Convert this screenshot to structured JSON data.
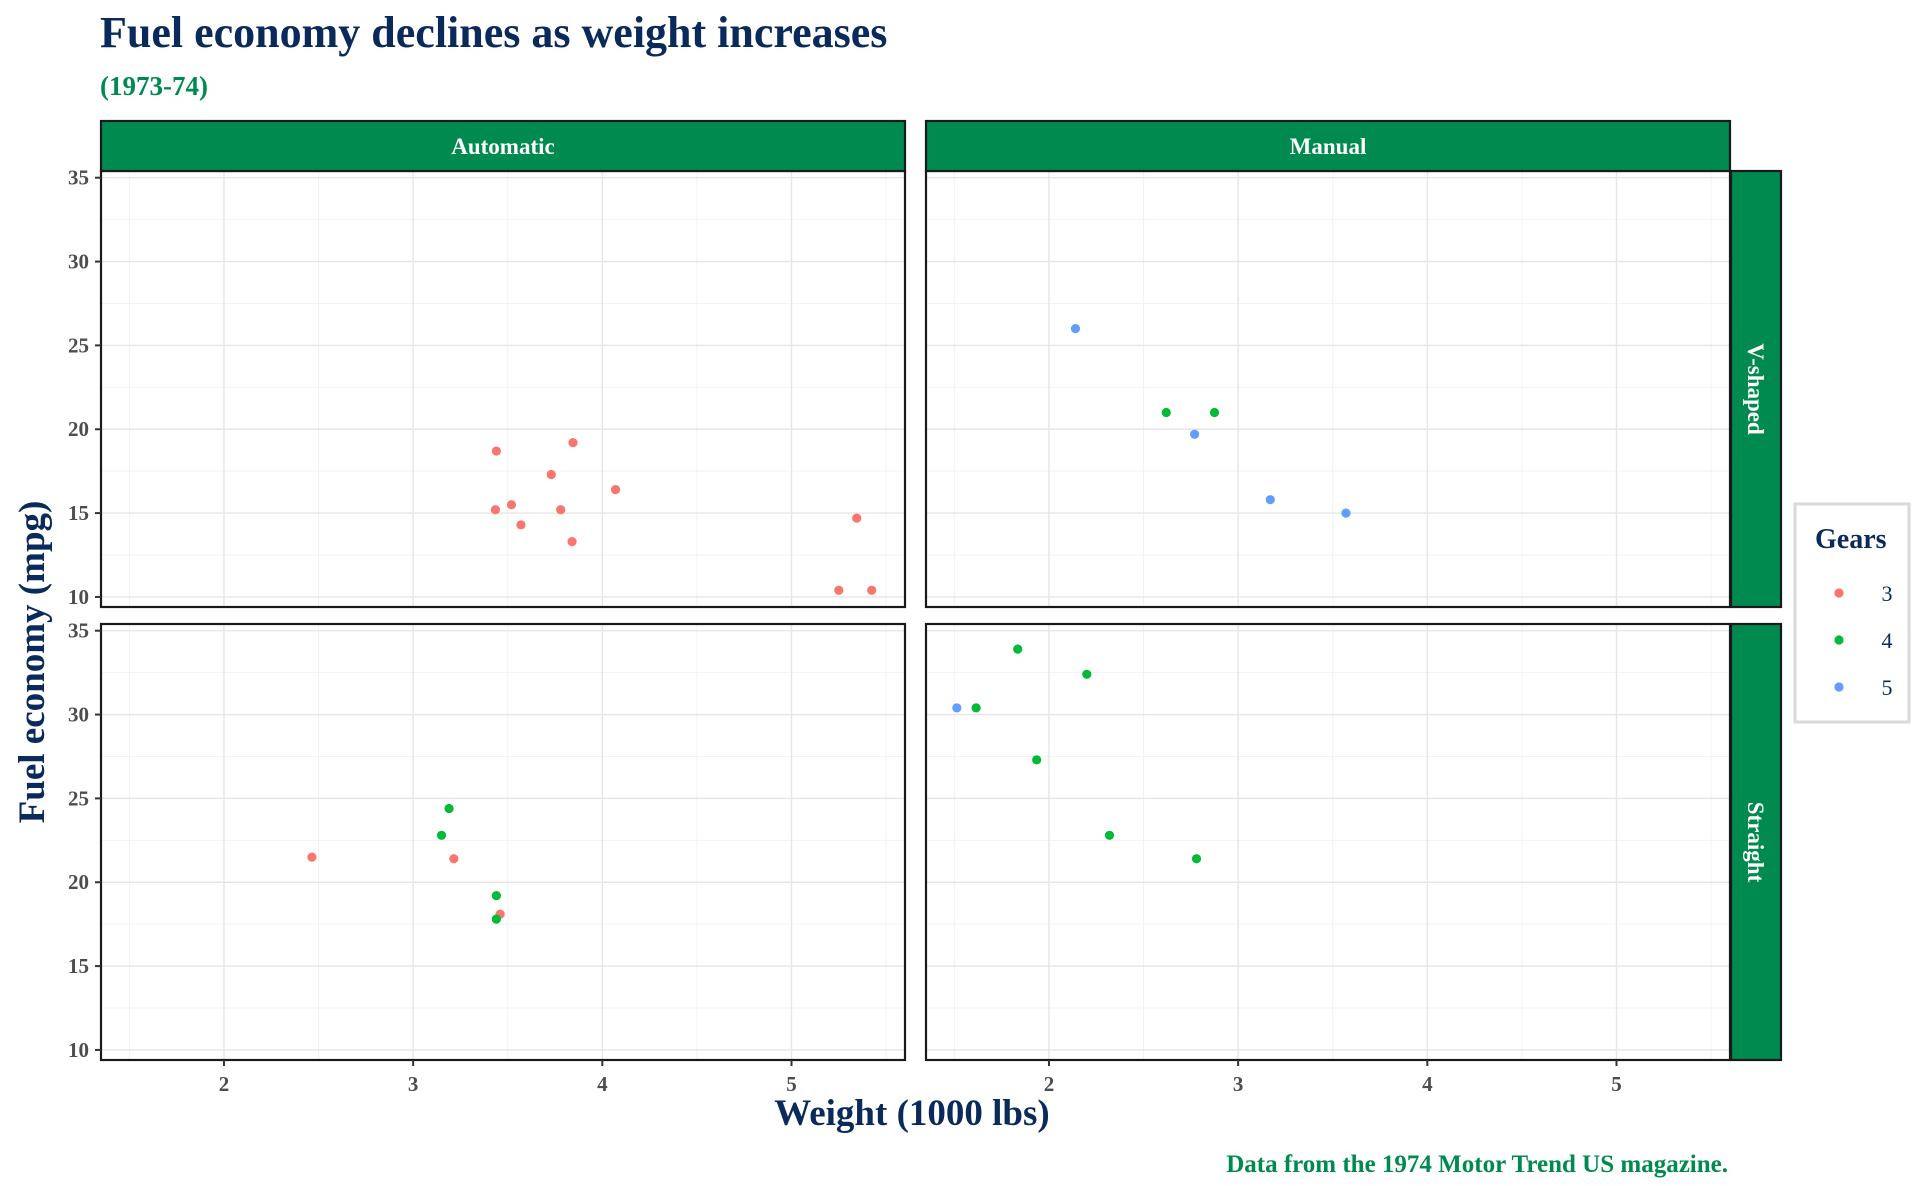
{
  "chart_data": {
    "type": "scatter",
    "title": "Fuel economy declines as weight increases",
    "subtitle": "(1973-74)",
    "caption": "Data from the 1974 Motor Trend US magazine.",
    "xlabel": "Weight (1000 lbs)",
    "ylabel": "Fuel economy (mpg)",
    "xlim": [
      1.35,
      5.6
    ],
    "ylim": [
      9.4,
      35.4
    ],
    "xticks": [
      2,
      3,
      4,
      5
    ],
    "yticks": [
      10,
      15,
      20,
      25,
      30,
      35
    ],
    "grid": true,
    "facet_columns": [
      "Automatic",
      "Manual"
    ],
    "facet_rows": [
      "V-shaped",
      "Straight"
    ],
    "legend": {
      "title": "Gears",
      "position": "right",
      "entries": [
        {
          "label": "3",
          "color": "#F8766D"
        },
        {
          "label": "4",
          "color": "#00BA38"
        },
        {
          "label": "5",
          "color": "#619CFF"
        }
      ]
    },
    "series": [
      {
        "gear": 3,
        "color": "#F8766D",
        "points": [
          {
            "column": "Automatic",
            "row": "V-shaped",
            "x": 3.44,
            "y": 18.7
          },
          {
            "column": "Automatic",
            "row": "V-shaped",
            "x": 3.57,
            "y": 14.3
          },
          {
            "column": "Automatic",
            "row": "V-shaped",
            "x": 4.07,
            "y": 16.4
          },
          {
            "column": "Automatic",
            "row": "V-shaped",
            "x": 3.73,
            "y": 17.3
          },
          {
            "column": "Automatic",
            "row": "V-shaped",
            "x": 3.78,
            "y": 15.2
          },
          {
            "column": "Automatic",
            "row": "V-shaped",
            "x": 5.25,
            "y": 10.4
          },
          {
            "column": "Automatic",
            "row": "V-shaped",
            "x": 5.424,
            "y": 10.4
          },
          {
            "column": "Automatic",
            "row": "V-shaped",
            "x": 5.345,
            "y": 14.7
          },
          {
            "column": "Automatic",
            "row": "V-shaped",
            "x": 3.52,
            "y": 15.5
          },
          {
            "column": "Automatic",
            "row": "V-shaped",
            "x": 3.435,
            "y": 15.2
          },
          {
            "column": "Automatic",
            "row": "V-shaped",
            "x": 3.84,
            "y": 13.3
          },
          {
            "column": "Automatic",
            "row": "V-shaped",
            "x": 3.845,
            "y": 19.2
          },
          {
            "column": "Automatic",
            "row": "Straight",
            "x": 3.215,
            "y": 21.4
          },
          {
            "column": "Automatic",
            "row": "Straight",
            "x": 3.46,
            "y": 18.1
          },
          {
            "column": "Automatic",
            "row": "Straight",
            "x": 2.465,
            "y": 21.5
          }
        ]
      },
      {
        "gear": 4,
        "color": "#00BA38",
        "points": [
          {
            "column": "Automatic",
            "row": "Straight",
            "x": 3.19,
            "y": 24.4
          },
          {
            "column": "Automatic",
            "row": "Straight",
            "x": 3.15,
            "y": 22.8
          },
          {
            "column": "Automatic",
            "row": "Straight",
            "x": 3.44,
            "y": 19.2
          },
          {
            "column": "Automatic",
            "row": "Straight",
            "x": 3.44,
            "y": 17.8
          },
          {
            "column": "Manual",
            "row": "V-shaped",
            "x": 2.62,
            "y": 21.0
          },
          {
            "column": "Manual",
            "row": "V-shaped",
            "x": 2.875,
            "y": 21.0
          },
          {
            "column": "Manual",
            "row": "Straight",
            "x": 2.32,
            "y": 22.8
          },
          {
            "column": "Manual",
            "row": "Straight",
            "x": 2.2,
            "y": 32.4
          },
          {
            "column": "Manual",
            "row": "Straight",
            "x": 1.615,
            "y": 30.4
          },
          {
            "column": "Manual",
            "row": "Straight",
            "x": 1.835,
            "y": 33.9
          },
          {
            "column": "Manual",
            "row": "Straight",
            "x": 1.935,
            "y": 27.3
          },
          {
            "column": "Manual",
            "row": "Straight",
            "x": 2.78,
            "y": 21.4
          }
        ]
      },
      {
        "gear": 5,
        "color": "#619CFF",
        "points": [
          {
            "column": "Manual",
            "row": "V-shaped",
            "x": 2.14,
            "y": 26.0
          },
          {
            "column": "Manual",
            "row": "V-shaped",
            "x": 3.17,
            "y": 15.8
          },
          {
            "column": "Manual",
            "row": "V-shaped",
            "x": 2.77,
            "y": 19.7
          },
          {
            "column": "Manual",
            "row": "V-shaped",
            "x": 3.57,
            "y": 15.0
          },
          {
            "column": "Manual",
            "row": "Straight",
            "x": 1.513,
            "y": 30.4
          }
        ]
      }
    ]
  }
}
